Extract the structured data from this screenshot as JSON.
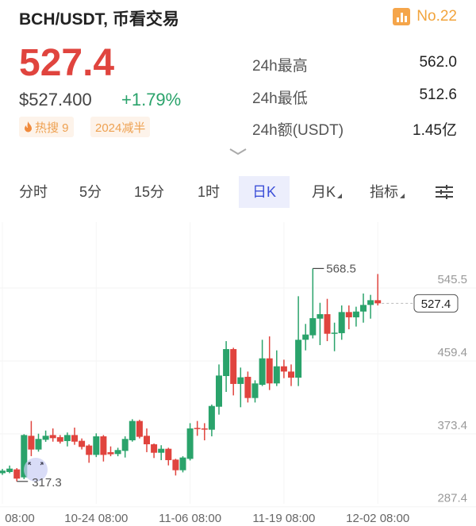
{
  "header": {
    "title": "BCH/USDT, 币看交易",
    "rank": "No.22",
    "rank_icon": "bar-chart-icon"
  },
  "quote": {
    "price": "527.4",
    "usd_price": "$527.400",
    "change": "+1.79%",
    "hot_tag": "热搜 9",
    "hot_icon": "fire-icon",
    "halving_tag": "2024减半"
  },
  "stats": [
    {
      "label": "24h最高",
      "value": "562.0"
    },
    {
      "label": "24h最低",
      "value": "512.6"
    },
    {
      "label": "24h额(USDT)",
      "value": "1.45亿"
    }
  ],
  "tabs": [
    {
      "label": "分时"
    },
    {
      "label": "5分"
    },
    {
      "label": "15分"
    },
    {
      "label": "1时"
    },
    {
      "label": "日K",
      "selected": true
    },
    {
      "label": "月K"
    },
    {
      "label": "指标"
    }
  ],
  "colors": {
    "up": "#2aa36b",
    "down": "#e0443e",
    "accent": "#3c4fd8",
    "price": "#e0443e",
    "rank": "#f2a43c"
  },
  "chart_data": {
    "type": "candlestick",
    "y_ticks": [
      "545.5",
      "459.4",
      "373.4",
      "287.4"
    ],
    "ylim": [
      287.4,
      545.5
    ],
    "x_ticks": [
      "08:00",
      "10-24 08:00",
      "11-06 08:00",
      "11-19 08:00",
      "12-02 08:00"
    ],
    "x_tick_index": [
      0,
      13,
      26,
      39,
      52
    ],
    "last_price": "527.4",
    "max_label": "568.5",
    "min_label": "317.3",
    "ohlc": [
      [
        327,
        332,
        325,
        330
      ],
      [
        328.4,
        336,
        327,
        332.4
      ],
      [
        331.5,
        333,
        317.3,
        320.6
      ],
      [
        322.1,
        373,
        320,
        372
      ],
      [
        371.1,
        388.6,
        347.1,
        354.9
      ],
      [
        354.9,
        373.6,
        352.4,
        367.4
      ],
      [
        366.4,
        377.3,
        364,
        371.1
      ],
      [
        372,
        379.8,
        364.2,
        368.3
      ],
      [
        369.5,
        372,
        362,
        364.2
      ],
      [
        364.9,
        375,
        358.6,
        372
      ],
      [
        372,
        380.8,
        360.5,
        364.2
      ],
      [
        365.2,
        368,
        355,
        358
      ],
      [
        359.6,
        361,
        339.3,
        348.6
      ],
      [
        348.6,
        374,
        346,
        370.5
      ],
      [
        370.5,
        372,
        340.8,
        348.6
      ],
      [
        351.8,
        358.6,
        347,
        349.3
      ],
      [
        349.6,
        357,
        347,
        354.3
      ],
      [
        353.3,
        370.5,
        345.5,
        367.4
      ],
      [
        365.8,
        390.7,
        364.2,
        388.6
      ],
      [
        388.6,
        390,
        368,
        369.9
      ],
      [
        371.1,
        379.8,
        351.8,
        361.1
      ],
      [
        361.1,
        362,
        344.9,
        351.1
      ],
      [
        351.1,
        360,
        342.4,
        355.8
      ],
      [
        355.8,
        357,
        336.2,
        342.4
      ],
      [
        343,
        344,
        324.3,
        330.5
      ],
      [
        330.5,
        347,
        328,
        345.5
      ],
      [
        343.9,
        386,
        342,
        379.8
      ],
      [
        380.4,
        388.6,
        371.1,
        379.2
      ],
      [
        379.8,
        386,
        365.8,
        378.6
      ],
      [
        378.3,
        408,
        370.5,
        406.3
      ],
      [
        405.4,
        455.3,
        396.1,
        442.2
      ],
      [
        441.6,
        482.8,
        422.9,
        473.4
      ],
      [
        473.4,
        475,
        418.8,
        432.3
      ],
      [
        432.3,
        451.6,
        404.8,
        440.1
      ],
      [
        440.7,
        446.9,
        410.4,
        415.7
      ],
      [
        415.7,
        436.6,
        410.4,
        432.9
      ],
      [
        431.3,
        484.4,
        429.8,
        462.5
      ],
      [
        462.5,
        488.4,
        425.1,
        432.9
      ],
      [
        432.9,
        471.9,
        429.8,
        453.1
      ],
      [
        453.1,
        460.9,
        439.1,
        446.9
      ],
      [
        446.9,
        455.3,
        429.8,
        439.7
      ],
      [
        439.7,
        535.8,
        429.8,
        484.4
      ],
      [
        484.4,
        503.1,
        471.9,
        490.6
      ],
      [
        489.7,
        568.5,
        486,
        509.9
      ],
      [
        509.3,
        528,
        478.1,
        514.6
      ],
      [
        514.6,
        532.7,
        482.8,
        491.5
      ],
      [
        491.5,
        504.6,
        470.9,
        492.8
      ],
      [
        492.2,
        524.9,
        484.4,
        517.1
      ],
      [
        517.1,
        524.9,
        496.8,
        510.9
      ],
      [
        510.9,
        523.4,
        500,
        517.7
      ],
      [
        517.7,
        539,
        504.6,
        525.5
      ],
      [
        525.5,
        537.4,
        509.3,
        531.1
      ],
      [
        531.1,
        562,
        524.9,
        527.4
      ]
    ]
  }
}
